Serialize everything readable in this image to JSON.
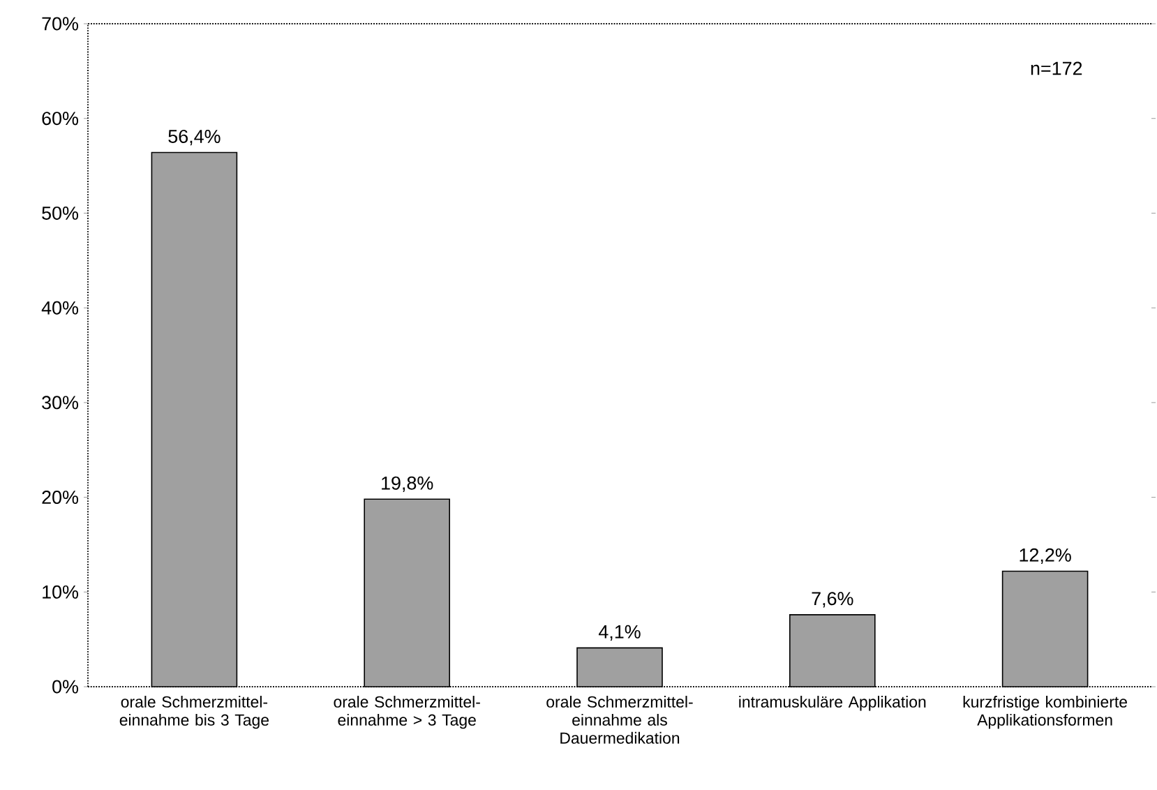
{
  "chart_data": {
    "type": "bar",
    "categories": [
      "orale Schmerzmittel-einnahme bis 3 Tage",
      "orale Schmerzmittel-einnahme > 3 Tage",
      "orale Schmerzmittel-einnahme als Dauermedikation",
      "intramuskuläre Applikation",
      "kurzfristige kombinierte Applikationsformen"
    ],
    "values": [
      56.4,
      19.8,
      4.1,
      7.6,
      12.2
    ],
    "value_labels": [
      "56,4%",
      "19,8%",
      "4,1%",
      "7,6%",
      "12,2%"
    ],
    "color": "#a0a0a0",
    "ylim": [
      0,
      70
    ],
    "yticks": [
      {
        "value": 0,
        "label": "0%"
      },
      {
        "value": 10,
        "label": "10%"
      },
      {
        "value": 20,
        "label": "20%"
      },
      {
        "value": 30,
        "label": "30%"
      },
      {
        "value": 40,
        "label": "40%"
      },
      {
        "value": 50,
        "label": "50%"
      },
      {
        "value": 60,
        "label": "60%"
      },
      {
        "value": 70,
        "label": "70%"
      }
    ],
    "annotations": [
      "n=172"
    ]
  }
}
